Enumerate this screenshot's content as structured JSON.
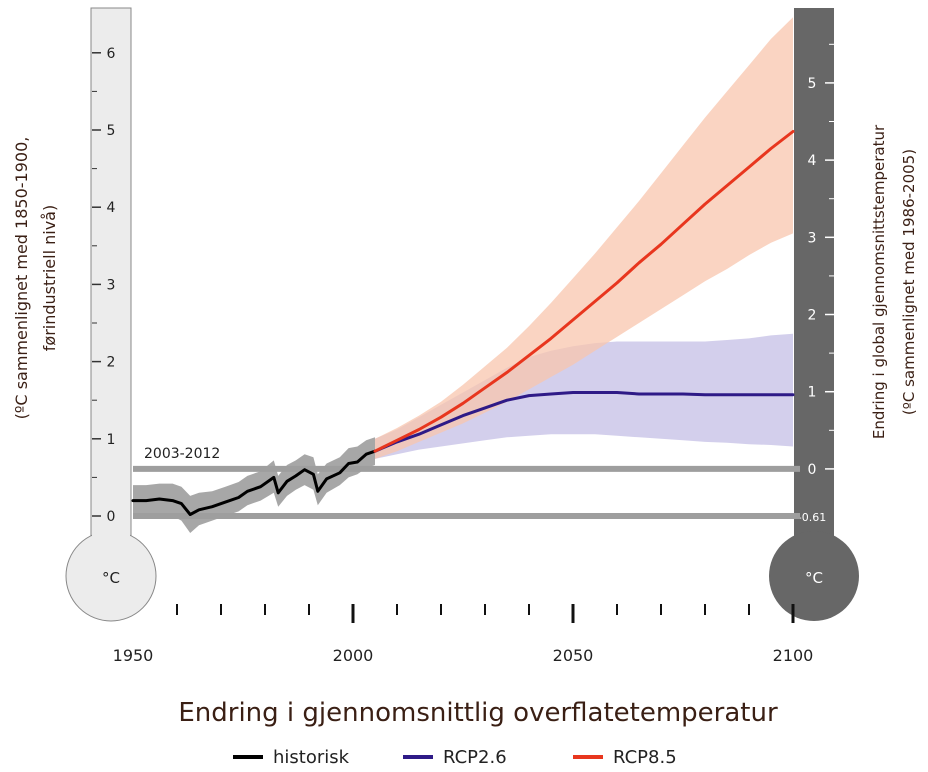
{
  "chart_data": {
    "type": "line",
    "title": "Endring i gjennomsnittlig overflatetemperatur",
    "period_label": "2003-2012",
    "left_axis": {
      "label_line1": "(ºC sammenlignet med 1850-1900,",
      "label_line2": "førindustriell nivå)",
      "unit": "°C",
      "range": [
        -0.6,
        6.4
      ],
      "ticks": [
        "0",
        "1",
        "2",
        "3",
        "4",
        "5",
        "6"
      ]
    },
    "right_axis": {
      "label_line1": "Endring i global gjennomsnittstemperatur",
      "label_line2": "(ºC sammenlignet med 1986-2005)",
      "unit": "°C",
      "ticks": [
        "-0.61",
        "0",
        "1",
        "2",
        "3",
        "4",
        "5"
      ]
    },
    "x_axis": {
      "range": [
        1950,
        2100
      ],
      "ticks": [
        "1950",
        "2000",
        "2050",
        "2100"
      ]
    },
    "reference_lines": [
      {
        "name": "1850-1900 nivå",
        "value": 0
      },
      {
        "name": "2003-2012",
        "value": 0.61
      }
    ],
    "legend": [
      {
        "label": "historisk",
        "color": "#000000"
      },
      {
        "label": "RCP2.6",
        "color": "#2e1a87"
      },
      {
        "label": "RCP8.5",
        "color": "#e8361e"
      }
    ],
    "series": [
      {
        "name": "historisk",
        "color": "#000000",
        "band_color": "#a7a7a7",
        "x": [
          1950,
          1953,
          1956,
          1959,
          1961,
          1963,
          1965,
          1968,
          1971,
          1974,
          1976,
          1979,
          1982,
          1983,
          1985,
          1987,
          1989,
          1991,
          1992,
          1994,
          1997,
          1999,
          2001,
          2003,
          2005
        ],
        "y": [
          0.2,
          0.2,
          0.22,
          0.2,
          0.16,
          0.02,
          0.08,
          0.12,
          0.18,
          0.24,
          0.32,
          0.38,
          0.5,
          0.3,
          0.45,
          0.52,
          0.6,
          0.54,
          0.32,
          0.48,
          0.56,
          0.68,
          0.7,
          0.8,
          0.84
        ],
        "lower": [
          0.0,
          0.0,
          0.02,
          0.0,
          -0.06,
          -0.22,
          -0.12,
          -0.06,
          0.0,
          0.06,
          0.14,
          0.2,
          0.3,
          0.12,
          0.26,
          0.34,
          0.4,
          0.34,
          0.14,
          0.3,
          0.4,
          0.5,
          0.54,
          0.62,
          0.66
        ],
        "upper": [
          0.4,
          0.4,
          0.42,
          0.42,
          0.38,
          0.26,
          0.3,
          0.32,
          0.38,
          0.44,
          0.52,
          0.58,
          0.72,
          0.52,
          0.66,
          0.72,
          0.8,
          0.76,
          0.54,
          0.68,
          0.76,
          0.88,
          0.9,
          0.98,
          1.02
        ]
      },
      {
        "name": "RCP2.6",
        "color": "#2e1a87",
        "band_color": "#c4bfe5",
        "x": [
          2005,
          2010,
          2015,
          2020,
          2025,
          2030,
          2035,
          2040,
          2045,
          2050,
          2055,
          2060,
          2065,
          2070,
          2075,
          2080,
          2085,
          2090,
          2095,
          2100
        ],
        "y": [
          0.84,
          0.96,
          1.06,
          1.18,
          1.3,
          1.4,
          1.5,
          1.56,
          1.58,
          1.6,
          1.6,
          1.6,
          1.58,
          1.58,
          1.58,
          1.57,
          1.57,
          1.57,
          1.57,
          1.57
        ],
        "lower": [
          0.74,
          0.8,
          0.86,
          0.9,
          0.94,
          0.98,
          1.02,
          1.04,
          1.06,
          1.06,
          1.06,
          1.04,
          1.02,
          1.0,
          0.98,
          0.96,
          0.95,
          0.93,
          0.92,
          0.9
        ],
        "upper": [
          1.0,
          1.12,
          1.28,
          1.44,
          1.6,
          1.76,
          1.92,
          2.06,
          2.14,
          2.2,
          2.24,
          2.26,
          2.26,
          2.26,
          2.26,
          2.26,
          2.28,
          2.3,
          2.34,
          2.36
        ]
      },
      {
        "name": "RCP8.5",
        "color": "#e8361e",
        "band_color": "#f8c5ad",
        "x": [
          2005,
          2010,
          2015,
          2020,
          2025,
          2030,
          2035,
          2040,
          2045,
          2050,
          2055,
          2060,
          2065,
          2070,
          2075,
          2080,
          2085,
          2090,
          2095,
          2100
        ],
        "y": [
          0.84,
          0.98,
          1.12,
          1.28,
          1.46,
          1.66,
          1.86,
          2.08,
          2.3,
          2.54,
          2.78,
          3.02,
          3.28,
          3.52,
          3.78,
          4.04,
          4.28,
          4.52,
          4.76,
          4.98
        ],
        "lower": [
          0.74,
          0.84,
          0.96,
          1.08,
          1.2,
          1.34,
          1.48,
          1.64,
          1.8,
          1.96,
          2.14,
          2.32,
          2.5,
          2.68,
          2.86,
          3.04,
          3.2,
          3.38,
          3.54,
          3.66
        ],
        "upper": [
          1.0,
          1.14,
          1.3,
          1.48,
          1.7,
          1.94,
          2.18,
          2.46,
          2.76,
          3.08,
          3.4,
          3.74,
          4.08,
          4.44,
          4.8,
          5.16,
          5.5,
          5.84,
          6.18,
          6.46
        ]
      }
    ]
  }
}
